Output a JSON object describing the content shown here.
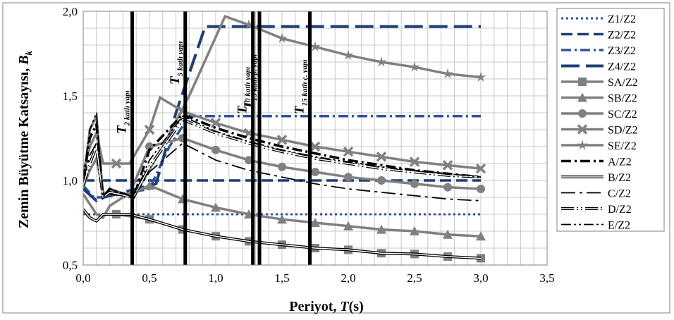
{
  "chart_data": {
    "type": "line",
    "xlabel_prefix": "Periyot, ",
    "xlabel_var": "T",
    "xlabel_suffix": "(s)",
    "ylabel_main": "Zemin Büyütme Katsayısı, ",
    "ylabel_var": "B",
    "ylabel_sub": "k",
    "xlim": [
      0,
      3.5
    ],
    "ylim": [
      0.5,
      2.0
    ],
    "xticks": [
      0,
      0.5,
      1.0,
      1.5,
      2.0,
      2.5,
      3.0,
      3.5
    ],
    "xtick_labels": [
      "0,0",
      "0,5",
      "1,0",
      "1,5",
      "2,0",
      "2,5",
      "3,0",
      "3,5"
    ],
    "yticks": [
      0.5,
      1.0,
      1.5,
      2.0
    ],
    "ytick_labels": [
      "0,5",
      "1,0",
      "1,5",
      "2,0"
    ],
    "grid": true,
    "legend_position": "right",
    "series": [
      {
        "name": "Z1/Z2",
        "color": "#2f5597",
        "style": "dot",
        "x": [
          0,
          0.1,
          0.3,
          3.0
        ],
        "y": [
          0.8,
          0.8,
          0.8,
          0.8
        ]
      },
      {
        "name": "Z2/Z2",
        "color": "#1f3f73",
        "style": "dash",
        "x": [
          0,
          0.1,
          0.4,
          3.0
        ],
        "y": [
          1.0,
          1.0,
          1.0,
          1.0
        ]
      },
      {
        "name": "Z3/Z2",
        "color": "#2f5597",
        "style": "dashdot",
        "x": [
          0,
          0.08,
          0.15,
          0.5,
          0.65,
          0.8,
          3.0
        ],
        "y": [
          0.97,
          0.9,
          0.9,
          0.95,
          1.2,
          1.38,
          1.38
        ]
      },
      {
        "name": "Z4/Z2",
        "color": "#1f3f73",
        "style": "longdash",
        "x": [
          0,
          0.1,
          0.15,
          0.55,
          0.7,
          0.92,
          3.0
        ],
        "y": [
          0.95,
          0.88,
          0.9,
          0.98,
          1.4,
          1.91,
          1.91
        ]
      },
      {
        "name": "SA/Z2",
        "color": "#808080",
        "style": "solid",
        "marker": "square",
        "x": [
          0,
          0.05,
          0.1,
          0.15,
          0.25,
          0.5,
          0.75,
          1.0,
          1.25,
          1.5,
          1.75,
          2.0,
          2.25,
          2.5,
          2.75,
          3.0
        ],
        "y": [
          0.82,
          0.78,
          0.76,
          0.8,
          0.8,
          0.77,
          0.71,
          0.67,
          0.64,
          0.62,
          0.6,
          0.59,
          0.57,
          0.565,
          0.55,
          0.54
        ]
      },
      {
        "name": "SB/Z2",
        "color": "#808080",
        "style": "solid",
        "marker": "triangle",
        "x": [
          0,
          0.05,
          0.1,
          0.15,
          0.2,
          0.3,
          0.5,
          0.75,
          1.0,
          1.25,
          1.5,
          1.75,
          2.0,
          2.25,
          2.5,
          2.75,
          3.0
        ],
        "y": [
          0.92,
          0.86,
          0.8,
          0.78,
          0.85,
          0.9,
          0.97,
          0.89,
          0.84,
          0.8,
          0.77,
          0.75,
          0.73,
          0.71,
          0.7,
          0.68,
          0.67
        ]
      },
      {
        "name": "SC/Z2",
        "color": "#808080",
        "style": "solid",
        "marker": "circle",
        "x": [
          0,
          0.05,
          0.1,
          0.15,
          0.2,
          0.35,
          0.5,
          0.75,
          1.0,
          1.25,
          1.5,
          1.75,
          2.0,
          2.25,
          2.5,
          2.75,
          3.0
        ],
        "y": [
          0.96,
          1.06,
          1.13,
          0.93,
          0.92,
          0.92,
          1.2,
          1.25,
          1.18,
          1.12,
          1.08,
          1.05,
          1.02,
          1.0,
          0.98,
          0.96,
          0.95
        ]
      },
      {
        "name": "SD/Z2",
        "color": "#808080",
        "style": "solid",
        "marker": "x",
        "x": [
          0,
          0.05,
          0.1,
          0.15,
          0.25,
          0.35,
          0.5,
          0.58,
          0.75,
          1.0,
          1.25,
          1.5,
          1.75,
          2.0,
          2.25,
          2.5,
          2.75,
          3.0
        ],
        "y": [
          1.05,
          1.2,
          1.28,
          1.1,
          1.1,
          1.1,
          1.3,
          1.49,
          1.41,
          1.34,
          1.28,
          1.24,
          1.2,
          1.17,
          1.14,
          1.11,
          1.09,
          1.07
        ]
      },
      {
        "name": "SE/Z2",
        "color": "#808080",
        "style": "solid",
        "marker": "star",
        "x": [
          0,
          0.05,
          0.1,
          0.15,
          0.2,
          0.38,
          0.6,
          0.8,
          1.07,
          1.25,
          1.5,
          1.75,
          2.0,
          2.25,
          2.5,
          2.75,
          3.0
        ],
        "y": [
          0.98,
          1.3,
          1.38,
          0.9,
          0.95,
          0.9,
          1.2,
          1.5,
          1.97,
          1.92,
          1.84,
          1.79,
          1.74,
          1.7,
          1.67,
          1.63,
          1.61
        ]
      },
      {
        "name": "A/Z2",
        "color": "#000000",
        "style": "dashdot",
        "x": [
          0,
          0.05,
          0.1,
          0.15,
          0.2,
          0.38,
          0.5,
          0.75,
          1.0,
          1.25,
          1.5,
          1.75,
          2.0,
          2.25,
          2.5,
          2.75,
          3.0
        ],
        "y": [
          1.0,
          1.25,
          1.33,
          0.9,
          0.95,
          0.9,
          1.18,
          1.39,
          1.31,
          1.25,
          1.2,
          1.16,
          1.12,
          1.09,
          1.06,
          1.04,
          1.02
        ]
      },
      {
        "name": "B/Z2",
        "color": "#000000",
        "style": "doubledash",
        "x": [
          0,
          0.05,
          0.1,
          0.15,
          0.25,
          0.35,
          0.5,
          0.75,
          1.0,
          1.25,
          1.5,
          1.75,
          2.0,
          2.25,
          2.5,
          2.75,
          3.0
        ],
        "y": [
          0.83,
          0.78,
          0.76,
          0.8,
          0.8,
          0.8,
          0.77,
          0.71,
          0.67,
          0.64,
          0.62,
          0.6,
          0.59,
          0.57,
          0.565,
          0.55,
          0.54
        ]
      },
      {
        "name": "C/Z2",
        "color": "#000000",
        "style": "longdashdot",
        "x": [
          0,
          0.05,
          0.1,
          0.15,
          0.2,
          0.38,
          0.5,
          0.75,
          1.0,
          1.25,
          1.5,
          1.75,
          2.0,
          2.25,
          2.5,
          2.75,
          3.0
        ],
        "y": [
          1.0,
          1.15,
          1.22,
          0.9,
          0.92,
          0.9,
          1.05,
          1.22,
          1.12,
          1.06,
          1.02,
          0.98,
          0.95,
          0.93,
          0.91,
          0.89,
          0.88
        ]
      },
      {
        "name": "D/Z2",
        "color": "#000000",
        "style": "doubledot",
        "x": [
          0,
          0.05,
          0.1,
          0.15,
          0.2,
          0.38,
          0.5,
          0.75,
          1.0,
          1.25,
          1.5,
          1.75,
          2.0,
          2.25,
          2.5,
          2.75,
          3.0
        ],
        "y": [
          0.97,
          1.1,
          1.2,
          0.9,
          0.93,
          0.9,
          1.08,
          1.36,
          1.28,
          1.22,
          1.17,
          1.13,
          1.1,
          1.07,
          1.05,
          1.03,
          1.02
        ]
      },
      {
        "name": "E/Z2",
        "color": "#000000",
        "style": "dashdotdot",
        "x": [
          0,
          0.05,
          0.1,
          0.15,
          0.2,
          0.38,
          0.5,
          0.75,
          1.0,
          1.25,
          1.5,
          1.75,
          2.0,
          2.25,
          2.5,
          2.75,
          3.0
        ],
        "y": [
          1.01,
          1.3,
          1.4,
          0.9,
          0.95,
          0.9,
          1.12,
          1.38,
          1.29,
          1.23,
          1.18,
          1.14,
          1.11,
          1.08,
          1.06,
          1.04,
          1.02
        ]
      }
    ],
    "vertical_markers": [
      {
        "x": 0.37,
        "label_main": "T",
        "label_sub": "2 katlı yapı"
      },
      {
        "x": 0.77,
        "label_main": "T",
        "label_sub": "5 katlı yapı"
      },
      {
        "x": 1.28,
        "label_main": "T",
        "label_sub": "10 katlı yapı"
      },
      {
        "x": 1.33,
        "label_main": "T",
        "label_sub": "15 katlı p. yapı"
      },
      {
        "x": 1.71,
        "label_main": "T",
        "label_sub": "15 katlı ç. yapı"
      }
    ]
  }
}
